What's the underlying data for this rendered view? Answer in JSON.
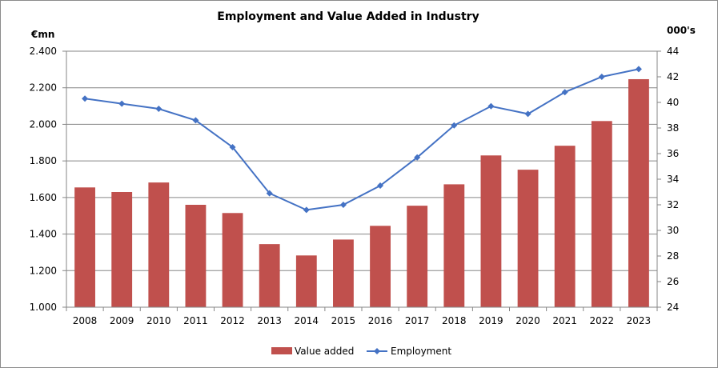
{
  "chart_data": {
    "type": "bar+line",
    "title": "Employment and Value Added in Industry",
    "left_axis_unit": "€mn",
    "right_axis_unit": "000's",
    "categories": [
      "2008",
      "2009",
      "2010",
      "2011",
      "2012",
      "2013",
      "2014",
      "2015",
      "2016",
      "2017",
      "2018",
      "2019",
      "2020",
      "2021",
      "2022",
      "2023"
    ],
    "series": [
      {
        "name": "Value added",
        "type": "bar",
        "axis": "left",
        "color": "#c0504d",
        "values": [
          1655,
          1630,
          1682,
          1560,
          1515,
          1345,
          1283,
          1370,
          1445,
          1555,
          1672,
          1830,
          1752,
          1883,
          2018,
          2247
        ]
      },
      {
        "name": "Employment",
        "type": "line",
        "axis": "right",
        "color": "#4472c4",
        "values": [
          40.3,
          39.9,
          39.5,
          38.6,
          36.5,
          32.9,
          31.6,
          32.0,
          33.5,
          35.7,
          38.2,
          39.7,
          39.1,
          40.8,
          42.0,
          42.6
        ]
      }
    ],
    "left_axis": {
      "min": 1000,
      "max": 2400,
      "step": 200,
      "tick_labels": [
        "1.000",
        "1.200",
        "1.400",
        "1.600",
        "1.800",
        "2.000",
        "2.200",
        "2.400"
      ]
    },
    "right_axis": {
      "min": 24,
      "max": 44,
      "step": 2,
      "tick_labels": [
        "24",
        "26",
        "28",
        "30",
        "32",
        "34",
        "36",
        "38",
        "40",
        "42",
        "44"
      ]
    },
    "grid": true,
    "legend_position": "bottom"
  }
}
